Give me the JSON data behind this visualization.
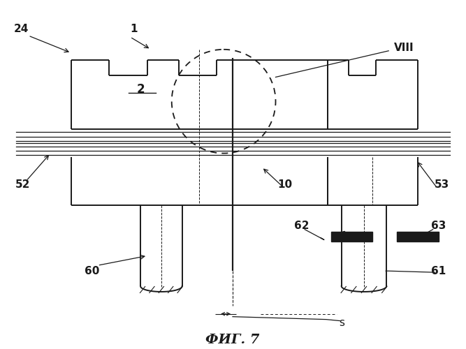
{
  "fig_label": "ФИГ. 7",
  "background_color": "#ffffff",
  "line_color": "#1a1a1a",
  "gray_color": "#888888"
}
